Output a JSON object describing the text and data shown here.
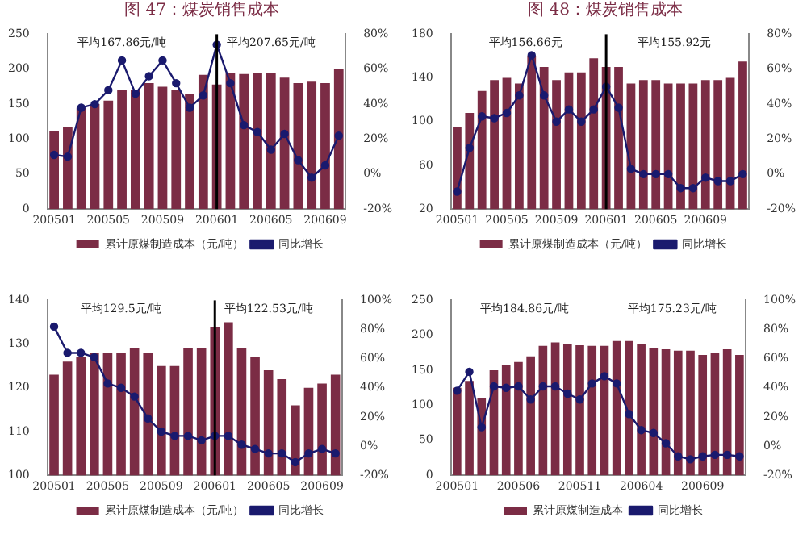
{
  "chart_data": [
    {
      "type": "bar",
      "title": "图 47：煤炭销售成本",
      "categories": [
        "200501",
        null,
        null,
        null,
        "200505",
        null,
        null,
        null,
        "200509",
        null,
        null,
        null,
        "200601",
        null,
        null,
        null,
        "200605",
        null,
        null,
        null,
        "200609",
        null
      ],
      "series": [
        {
          "name": "累计原煤制造成本（元/吨）",
          "color": "#7b2c45",
          "values": [
            112,
            117,
            145,
            150,
            155,
            170,
            170,
            180,
            175,
            170,
            165,
            192,
            178,
            195,
            193,
            195,
            195,
            188,
            180,
            182,
            180,
            200
          ]
        },
        {
          "type": "line",
          "axis": "y2",
          "name": "同比增长",
          "color": "#1a1a6e",
          "values": [
            11,
            10,
            38,
            40,
            48,
            65,
            46,
            56,
            65,
            52,
            38,
            45,
            74,
            52,
            28,
            24,
            14,
            23,
            8,
            -2,
            5,
            22
          ]
        }
      ],
      "ylim": [
        0,
        250
      ],
      "yticks": [
        0,
        50,
        100,
        150,
        200,
        250
      ],
      "y2lim": [
        -20,
        80
      ],
      "y2ticks": [
        {
          "value": -20,
          "label": "-20%"
        },
        {
          "value": 0,
          "label": "0%"
        },
        {
          "value": 20,
          "label": "20%"
        },
        {
          "value": 40,
          "label": "40%"
        },
        {
          "value": 60,
          "label": "60%"
        },
        {
          "value": 80,
          "label": "80%"
        }
      ],
      "ref_lines": [
        {
          "axis": "x",
          "value": "200601",
          "color": "#000000"
        }
      ],
      "annotations": [
        "平均167.86元/吨",
        "平均207.65元/吨"
      ],
      "marker": "circle",
      "legend": "bottom",
      "grid": false
    },
    {
      "type": "bar",
      "title": "图 48：煤炭销售成本",
      "categories": [
        "200501",
        null,
        null,
        null,
        "200505",
        null,
        null,
        null,
        "200509",
        null,
        null,
        null,
        "200601",
        null,
        null,
        null,
        "200605",
        null,
        null,
        null,
        "200609",
        null,
        null,
        null
      ],
      "series": [
        {
          "name": "累计原煤制造成本（元/吨）",
          "color": "#7b2c45",
          "values": [
            95,
            108,
            128,
            138,
            140,
            135,
            160,
            150,
            138,
            145,
            145,
            158,
            150,
            150,
            135,
            138,
            138,
            135,
            135,
            135,
            138,
            138,
            140,
            155
          ]
        },
        {
          "type": "line",
          "axis": "y2",
          "name": "同比增长",
          "color": "#1a1a6e",
          "values": [
            -10,
            15,
            33,
            32,
            35,
            45,
            68,
            45,
            30,
            37,
            30,
            37,
            50,
            38,
            3,
            0,
            0,
            0,
            -8,
            -8,
            -2,
            -4,
            -4,
            0
          ]
        }
      ],
      "ylim": [
        20,
        180
      ],
      "yticks": [
        20,
        60,
        100,
        140,
        180
      ],
      "y2lim": [
        -20,
        80
      ],
      "y2ticks": [
        {
          "value": -20,
          "label": "-20%"
        },
        {
          "value": 0,
          "label": "0%"
        },
        {
          "value": 20,
          "label": "20%"
        },
        {
          "value": 40,
          "label": "40%"
        },
        {
          "value": 60,
          "label": "60%"
        },
        {
          "value": 80,
          "label": "80%"
        }
      ],
      "ref_lines": [
        {
          "axis": "x",
          "value": "200601",
          "color": "#000000"
        }
      ],
      "annotations": [
        "平均156.66元",
        "平均155.92元"
      ],
      "marker": "circle",
      "legend": "bottom",
      "grid": false
    },
    {
      "type": "bar",
      "categories": [
        "200501",
        null,
        null,
        null,
        "200505",
        null,
        null,
        null,
        "200509",
        null,
        null,
        null,
        "200601",
        null,
        null,
        null,
        "200605",
        null,
        null,
        null,
        "200609",
        null
      ],
      "series": [
        {
          "name": "累计原煤制造成本（元/吨）",
          "color": "#7b2c45",
          "values": [
            123,
            126,
            127,
            128,
            128,
            128,
            129,
            128,
            125,
            125,
            129,
            129,
            134,
            135,
            129,
            127,
            124,
            122,
            116,
            120,
            121,
            123
          ]
        },
        {
          "type": "line",
          "axis": "y2",
          "name": "同比增长",
          "color": "#1a1a6e",
          "values": [
            82,
            64,
            64,
            61,
            43,
            40,
            34,
            19,
            10,
            7,
            7,
            4,
            7,
            7,
            1,
            -2,
            -5,
            -5,
            -11,
            -5,
            -2,
            -5
          ]
        }
      ],
      "ylim": [
        100,
        140
      ],
      "yticks": [
        100,
        110,
        120,
        130,
        140
      ],
      "y2lim": [
        -20,
        100
      ],
      "y2ticks": [
        {
          "value": -20,
          "label": "-20%"
        },
        {
          "value": 0,
          "label": "0%"
        },
        {
          "value": 20,
          "label": "20%"
        },
        {
          "value": 40,
          "label": "40%"
        },
        {
          "value": 60,
          "label": "60%"
        },
        {
          "value": 80,
          "label": "80%"
        },
        {
          "value": 100,
          "label": "100%"
        }
      ],
      "ref_lines": [
        {
          "axis": "x",
          "value": "200601",
          "color": "#000000"
        }
      ],
      "annotations": [
        "平均129.5元/吨",
        "平均122.53元/吨"
      ],
      "marker": "circle",
      "legend": "bottom",
      "grid": false
    },
    {
      "type": "bar",
      "categories": [
        "200501",
        null,
        null,
        null,
        null,
        "200506",
        null,
        null,
        null,
        null,
        "200511",
        null,
        null,
        null,
        null,
        "200604",
        null,
        null,
        null,
        null,
        "200609",
        null,
        null,
        null
      ],
      "series": [
        {
          "name": "累计原煤制造成本",
          "color": "#7b2c45",
          "values": [
            125,
            135,
            110,
            150,
            158,
            162,
            170,
            185,
            190,
            188,
            186,
            185,
            185,
            192,
            192,
            188,
            182,
            180,
            178,
            178,
            172,
            175,
            180,
            172
          ]
        },
        {
          "type": "line",
          "axis": "y2",
          "name": "同比增长",
          "color": "#1a1a6e",
          "values": [
            38,
            51,
            13,
            41,
            40,
            41,
            32,
            41,
            41,
            36,
            32,
            43,
            48,
            43,
            22,
            11,
            9,
            2,
            -7,
            -9,
            -7,
            -6,
            -6,
            -7
          ]
        }
      ],
      "ylim": [
        0,
        250
      ],
      "yticks": [
        0,
        50,
        100,
        150,
        200,
        250
      ],
      "y2lim": [
        -20,
        100
      ],
      "y2ticks": [
        {
          "value": -20,
          "label": "-20%"
        },
        {
          "value": 0,
          "label": "0%"
        },
        {
          "value": 20,
          "label": "20%"
        },
        {
          "value": 40,
          "label": "40%"
        },
        {
          "value": 60,
          "label": "60%"
        },
        {
          "value": 80,
          "label": "80%"
        },
        {
          "value": 100,
          "label": "100%"
        }
      ],
      "annotations": [
        "平均184.86元/吨",
        "平均175.23元/吨"
      ],
      "marker": "circle",
      "legend": "bottom",
      "grid": false
    }
  ]
}
